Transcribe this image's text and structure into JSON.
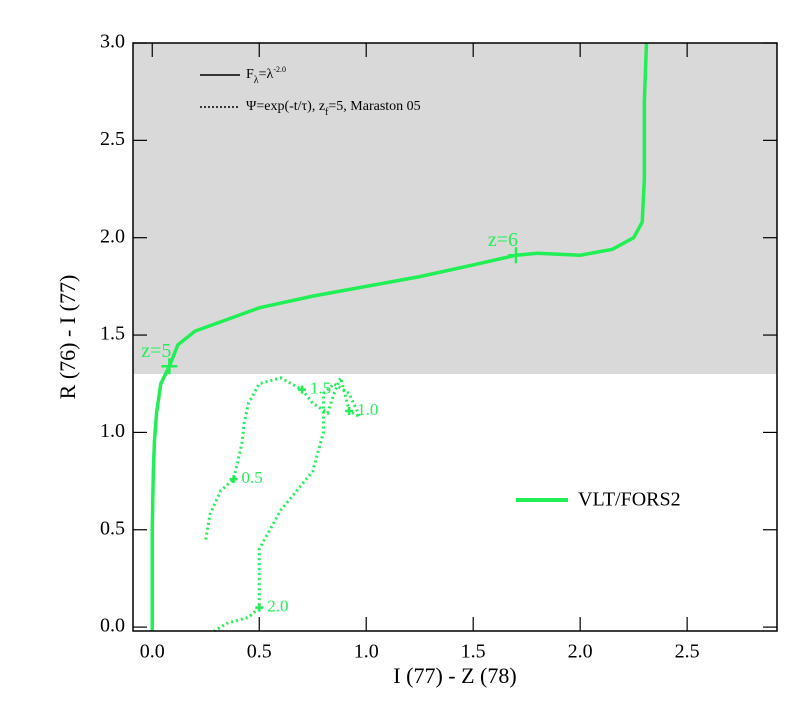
{
  "chart_data": {
    "type": "line",
    "xlabel": "I (77) - Z (78)",
    "ylabel": "R (76) - I (77)",
    "xlim": [
      -0.09,
      2.92
    ],
    "ylim": [
      -0.02,
      3.0
    ],
    "xticks": [
      {
        "value": 0,
        "label": "0.0"
      },
      0.5,
      {
        "value": 1,
        "label": "1.0"
      },
      1.5,
      {
        "value": 2,
        "label": "2.0"
      },
      2.5
    ],
    "yticks": [
      {
        "value": 0,
        "label": "0.0"
      },
      0.5,
      {
        "value": 1,
        "label": "1.0"
      },
      1.5,
      {
        "value": 2,
        "label": "2.0"
      },
      2.5,
      {
        "value": 3,
        "label": "3.0"
      }
    ],
    "shade": {
      "ymin": 1.3,
      "ymax": 3.0,
      "color": "#d9d9d9"
    },
    "style_legend": [
      {
        "style": "solid",
        "color": "#000000",
        "parts": [
          {
            "text": "F"
          },
          {
            "text": "λ",
            "sub": true
          },
          {
            "text": "=λ"
          },
          {
            "text": "-2.0",
            "sup": true
          }
        ]
      },
      {
        "style": "dotted",
        "color": "#000000",
        "parts": [
          {
            "text": "Ψ=exp(-t/τ), z"
          },
          {
            "text": "f",
            "sub": true
          },
          {
            "text": "=5, Maraston 05"
          }
        ]
      }
    ],
    "series": [
      {
        "name": "VLT/FORS2",
        "color": "#22ee55",
        "style": "solid",
        "x": [
          0.0,
          0.0,
          0.005,
          0.01,
          0.02,
          0.04,
          0.08,
          0.12,
          0.2,
          0.35,
          0.5,
          0.75,
          1.0,
          1.25,
          1.5,
          1.7,
          1.8,
          2.0,
          2.15,
          2.25,
          2.29,
          2.3,
          2.3,
          2.31
        ],
        "y": [
          -0.02,
          0.5,
          0.8,
          0.95,
          1.1,
          1.25,
          1.34,
          1.45,
          1.52,
          1.58,
          1.64,
          1.7,
          1.75,
          1.8,
          1.86,
          1.91,
          1.92,
          1.91,
          1.94,
          2.0,
          2.08,
          2.3,
          2.7,
          3.0
        ],
        "markers": [
          {
            "x": 0.08,
            "y": 1.34,
            "label": "z=5"
          },
          {
            "x": 1.7,
            "y": 1.91,
            "label": "z=6"
          }
        ]
      },
      {
        "name": null,
        "color": "#22ee55",
        "style": "dotted",
        "x": [
          0.25,
          0.27,
          0.32,
          0.38,
          0.4,
          0.42,
          0.43,
          0.45,
          0.5,
          0.6,
          0.7,
          0.75,
          0.82,
          0.85,
          0.88,
          0.9,
          0.92,
          0.97,
          0.92,
          0.85,
          0.8,
          0.8,
          0.75,
          0.6,
          0.5,
          0.5,
          0.5,
          0.45,
          0.35,
          0.29
        ],
        "y": [
          0.45,
          0.58,
          0.7,
          0.76,
          0.85,
          0.95,
          1.05,
          1.15,
          1.25,
          1.28,
          1.22,
          1.15,
          1.1,
          1.2,
          1.28,
          1.2,
          1.11,
          1.08,
          1.2,
          1.25,
          1.2,
          1.0,
          0.8,
          0.6,
          0.4,
          0.2,
          0.1,
          0.05,
          0.02,
          -0.02
        ],
        "markers": [
          {
            "x": 0.38,
            "y": 0.76,
            "label": "0.5"
          },
          {
            "x": 0.7,
            "y": 1.22,
            "label": "1.5"
          },
          {
            "x": 0.92,
            "y": 1.11,
            "label": "1.0"
          },
          {
            "x": 0.5,
            "y": 0.1,
            "label": "2.0"
          }
        ]
      }
    ]
  }
}
